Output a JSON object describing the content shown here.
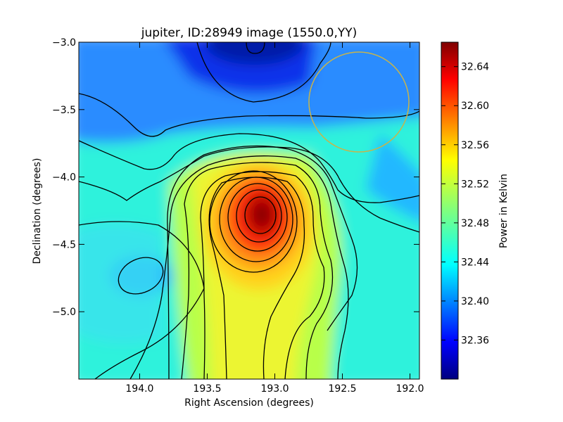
{
  "chart_data": {
    "type": "heatmap",
    "title": "jupiter, ID:28949 image (1550.0,YY)",
    "xlabel": "Right Ascension (degrees)",
    "ylabel": "Declination (degrees)",
    "xlim": [
      194.45,
      191.93
    ],
    "ylim": [
      -5.5,
      -3.0
    ],
    "x_ticks": [
      {
        "value": 194.0,
        "label": "194.0"
      },
      {
        "value": 193.5,
        "label": "193.5"
      },
      {
        "value": 193.0,
        "label": "193.0"
      },
      {
        "value": 192.5,
        "label": "192.5"
      },
      {
        "value": 192.0,
        "label": "192.0"
      }
    ],
    "y_ticks": [
      {
        "value": -3.0,
        "label": "−3.0"
      },
      {
        "value": -3.5,
        "label": "−3.5"
      },
      {
        "value": -4.0,
        "label": "−4.0"
      },
      {
        "value": -4.5,
        "label": "−4.5"
      },
      {
        "value": -5.0,
        "label": "−5.0"
      }
    ],
    "colorbar": {
      "label": "Power in Kelvin",
      "range": [
        32.32,
        32.665
      ],
      "ticks": [
        {
          "value": 32.36,
          "label": "32.36"
        },
        {
          "value": 32.4,
          "label": "32.40"
        },
        {
          "value": 32.44,
          "label": "32.44"
        },
        {
          "value": 32.48,
          "label": "32.48"
        },
        {
          "value": 32.52,
          "label": "32.52"
        },
        {
          "value": 32.56,
          "label": "32.56"
        },
        {
          "value": 32.6,
          "label": "32.60"
        },
        {
          "value": 32.64,
          "label": "32.64"
        }
      ]
    },
    "peak": {
      "ra": 193.12,
      "dec": -4.28,
      "value": 32.66
    },
    "minimum": {
      "ra": 193.12,
      "dec": -3.02,
      "value": 32.33
    },
    "circle": {
      "ra": 192.37,
      "dec": -3.43,
      "radius_deg": 0.37,
      "color": "#c8b44a"
    },
    "colors": {
      "background": "#ffffff",
      "contour": "#000000"
    }
  }
}
